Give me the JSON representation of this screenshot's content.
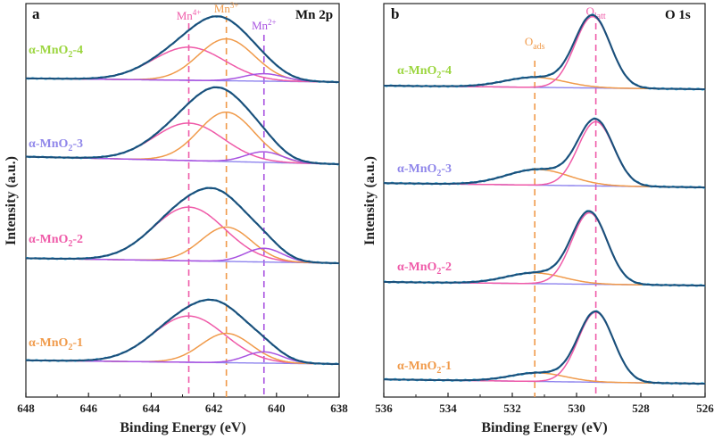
{
  "colors": {
    "envelope": "#1b4f7a",
    "raw": "#33b5e5",
    "background": "#8e83ee",
    "Mn4": "#ef5aa8",
    "Mn3": "#f09a4a",
    "Mn2": "#a852e0",
    "Oads": "#f09a4a",
    "Olatt": "#ef5aa8",
    "sample4": "#9bd53e",
    "sample3": "#8f86ea",
    "sample2": "#ef5aa8",
    "sample1": "#f09a4a"
  },
  "chart_data": [
    {
      "type": "line",
      "panel": "a",
      "core_level": "Mn 2p",
      "xlabel": "Binding Energy (eV)",
      "ylabel": "Intensity (a.u.)",
      "xlim": [
        648,
        638
      ],
      "xticks": [
        "648",
        "646",
        "644",
        "642",
        "640",
        "638"
      ],
      "peak_lines": [
        {
          "name": "Mn",
          "sup": "4+",
          "x": 642.8,
          "color_key": "Mn4"
        },
        {
          "name": "Mn",
          "sup": "3+",
          "x": 641.6,
          "color_key": "Mn3"
        },
        {
          "name": "Mn",
          "sup": "2+",
          "x": 640.4,
          "color_key": "Mn2"
        }
      ],
      "series": [
        {
          "name": "α-MnO2-4",
          "label_prefix": "α-MnO",
          "label_sub": "2",
          "label_suffix": "-4",
          "color_key": "sample4",
          "components": [
            {
              "species": "Mn4+",
              "center": 642.8,
              "height": 0.53,
              "fwhm": 2.7
            },
            {
              "species": "Mn3+",
              "center": 641.6,
              "height": 0.67,
              "fwhm": 2.1
            },
            {
              "species": "Mn2+",
              "center": 640.4,
              "height": 0.12,
              "fwhm": 1.5
            }
          ],
          "background": [
            0.06,
            0.0
          ]
        },
        {
          "name": "α-MnO2-3",
          "label_prefix": "α-MnO",
          "label_sub": "2",
          "label_suffix": "-3",
          "color_key": "sample3",
          "components": [
            {
              "species": "Mn4+",
              "center": 642.8,
              "height": 0.6,
              "fwhm": 2.6
            },
            {
              "species": "Mn3+",
              "center": 641.6,
              "height": 0.79,
              "fwhm": 2.1
            },
            {
              "species": "Mn2+",
              "center": 640.4,
              "height": 0.17,
              "fwhm": 1.4
            }
          ],
          "background": [
            0.12,
            0.0
          ]
        },
        {
          "name": "α-MnO2-2",
          "label_prefix": "α-MnO",
          "label_sub": "2",
          "label_suffix": "-2",
          "color_key": "sample2",
          "components": [
            {
              "species": "Mn4+",
              "center": 642.8,
              "height": 0.86,
              "fwhm": 2.7
            },
            {
              "species": "Mn3+",
              "center": 641.6,
              "height": 0.55,
              "fwhm": 1.9
            },
            {
              "species": "Mn2+",
              "center": 640.4,
              "height": 0.22,
              "fwhm": 1.4
            }
          ],
          "background": [
            0.08,
            0.0
          ]
        },
        {
          "name": "α-MnO2-1",
          "label_prefix": "α-MnO",
          "label_sub": "2",
          "label_suffix": "-1",
          "color_key": "sample1",
          "components": [
            {
              "species": "Mn4+",
              "center": 642.8,
              "height": 0.74,
              "fwhm": 2.7
            },
            {
              "species": "Mn3+",
              "center": 641.6,
              "height": 0.47,
              "fwhm": 1.9
            },
            {
              "species": "Mn2+",
              "center": 640.4,
              "height": 0.18,
              "fwhm": 1.4
            }
          ],
          "background": [
            0.06,
            0.0
          ]
        }
      ]
    },
    {
      "type": "line",
      "panel": "b",
      "core_level": "O 1s",
      "xlabel": "Binding Energy (eV)",
      "ylabel": "Intensity (a.u.)",
      "xlim": [
        536,
        526
      ],
      "xticks": [
        "536",
        "534",
        "532",
        "530",
        "528",
        "526"
      ],
      "peak_lines": [
        {
          "name": "O",
          "sub": "ads",
          "x": 531.3,
          "color_key": "Oads"
        },
        {
          "name": "O",
          "sub": "latt",
          "x": 529.4,
          "color_key": "Olatt"
        }
      ],
      "series": [
        {
          "name": "α-MnO2-4",
          "label_prefix": "α-MnO",
          "label_sub": "2",
          "label_suffix": "-4",
          "color_key": "sample4",
          "components": [
            {
              "species": "Oads",
              "center": 531.3,
              "height": 0.14,
              "fwhm": 2.2
            },
            {
              "species": "Olatt",
              "center": 529.5,
              "height": 1.0,
              "fwhm": 1.3
            }
          ],
          "background": [
            0.05,
            0.0
          ]
        },
        {
          "name": "α-MnO2-3",
          "label_prefix": "α-MnO",
          "label_sub": "2",
          "label_suffix": "-3",
          "color_key": "sample3",
          "components": [
            {
              "species": "Oads",
              "center": 531.2,
              "height": 0.22,
              "fwhm": 2.3
            },
            {
              "species": "Olatt",
              "center": 529.4,
              "height": 0.9,
              "fwhm": 1.3
            }
          ],
          "background": [
            0.06,
            0.0
          ]
        },
        {
          "name": "α-MnO2-2",
          "label_prefix": "α-MnO",
          "label_sub": "2",
          "label_suffix": "-2",
          "color_key": "sample2",
          "components": [
            {
              "species": "Oads",
              "center": 531.3,
              "height": 0.15,
              "fwhm": 2.1
            },
            {
              "species": "Olatt",
              "center": 529.6,
              "height": 1.0,
              "fwhm": 1.3
            }
          ],
          "background": [
            0.05,
            0.0
          ]
        },
        {
          "name": "α-MnO2-1",
          "label_prefix": "α-MnO",
          "label_sub": "2",
          "label_suffix": "-1",
          "color_key": "sample1",
          "components": [
            {
              "species": "Oads",
              "center": 531.2,
              "height": 0.12,
              "fwhm": 2.0
            },
            {
              "species": "Olatt",
              "center": 529.4,
              "height": 0.98,
              "fwhm": 1.3
            }
          ],
          "background": [
            0.06,
            0.0
          ]
        }
      ]
    }
  ]
}
